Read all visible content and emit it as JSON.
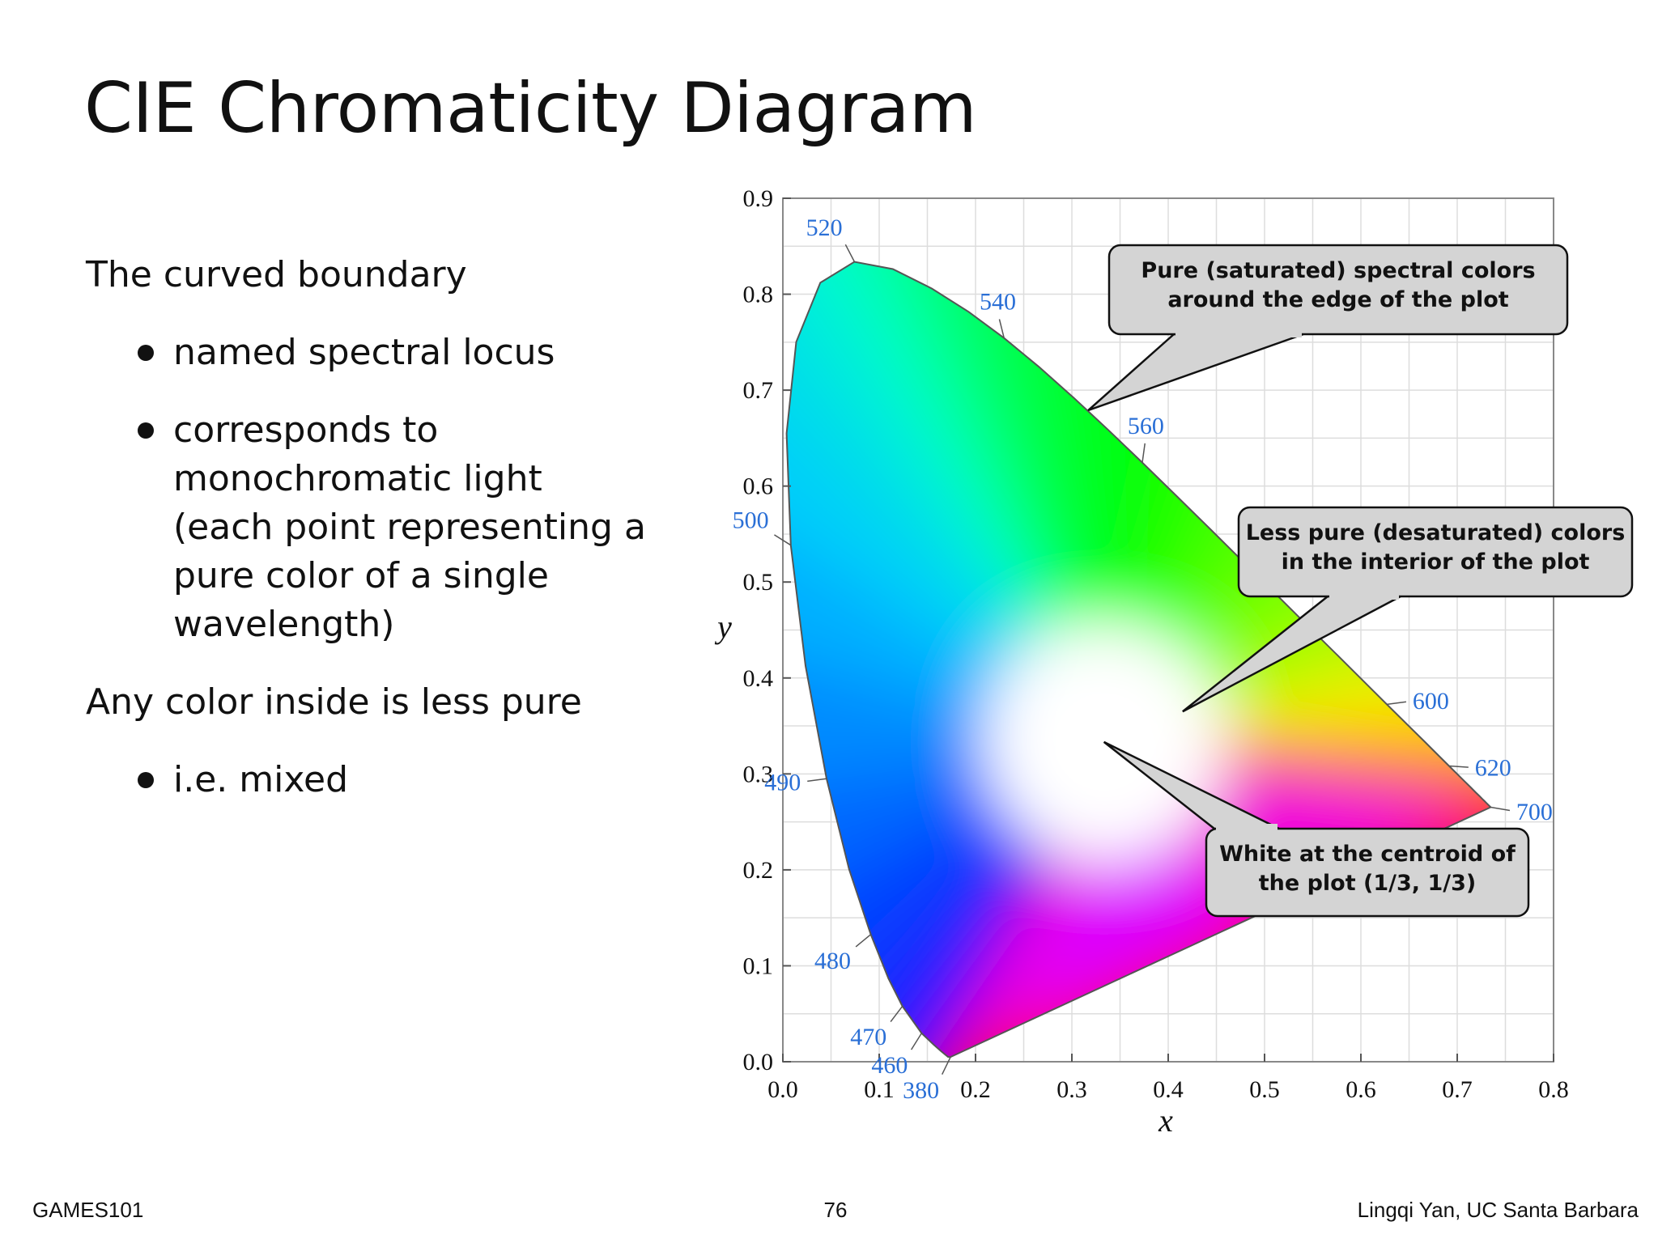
{
  "slide": {
    "title": "CIE Chromaticity Diagram",
    "bullets": [
      {
        "level": 1,
        "text": "The curved boundary"
      },
      {
        "level": 2,
        "text": "named spectral locus"
      },
      {
        "level": 2,
        "lines": [
          "corresponds to",
          "monochromatic light",
          "(each point representing a",
          "pure color of a single",
          "wavelength)"
        ]
      },
      {
        "level": 1,
        "text": "Any color inside is less pure"
      },
      {
        "level": 2,
        "text": "i.e. mixed"
      }
    ],
    "footer": {
      "left": "GAMES101",
      "center": "76",
      "right": "Lingqi Yan, UC Santa Barbara"
    }
  },
  "chart_data": {
    "type": "scatter",
    "xlabel": "x",
    "ylabel": "y",
    "xlim": [
      0.0,
      0.8
    ],
    "ylim": [
      0.0,
      0.9
    ],
    "xticks": [
      "0.0",
      "0.1",
      "0.2",
      "0.3",
      "0.4",
      "0.5",
      "0.6",
      "0.7",
      "0.8"
    ],
    "yticks": [
      "0.0",
      "0.1",
      "0.2",
      "0.3",
      "0.4",
      "0.5",
      "0.6",
      "0.7",
      "0.8",
      "0.9"
    ],
    "grid": true,
    "spectral_locus": [
      {
        "x": 0.1741,
        "y": 0.005
      },
      {
        "x": 0.1738,
        "y": 0.0049
      },
      {
        "x": 0.1714,
        "y": 0.0051
      },
      {
        "x": 0.1644,
        "y": 0.0109
      },
      {
        "x": 0.1566,
        "y": 0.0177
      },
      {
        "x": 0.144,
        "y": 0.0297
      },
      {
        "x": 0.1241,
        "y": 0.0578
      },
      {
        "x": 0.1096,
        "y": 0.0868
      },
      {
        "x": 0.0913,
        "y": 0.1327
      },
      {
        "x": 0.0687,
        "y": 0.2007
      },
      {
        "x": 0.0454,
        "y": 0.295
      },
      {
        "x": 0.0235,
        "y": 0.4127
      },
      {
        "x": 0.0082,
        "y": 0.5384
      },
      {
        "x": 0.0039,
        "y": 0.6548
      },
      {
        "x": 0.0139,
        "y": 0.7502
      },
      {
        "x": 0.0389,
        "y": 0.812
      },
      {
        "x": 0.0743,
        "y": 0.8338
      },
      {
        "x": 0.1142,
        "y": 0.8262
      },
      {
        "x": 0.1547,
        "y": 0.8059
      },
      {
        "x": 0.1929,
        "y": 0.7816
      },
      {
        "x": 0.2296,
        "y": 0.7543
      },
      {
        "x": 0.2658,
        "y": 0.7243
      },
      {
        "x": 0.3016,
        "y": 0.6923
      },
      {
        "x": 0.3373,
        "y": 0.6589
      },
      {
        "x": 0.3731,
        "y": 0.6245
      },
      {
        "x": 0.4087,
        "y": 0.5896
      },
      {
        "x": 0.4441,
        "y": 0.5547
      },
      {
        "x": 0.4788,
        "y": 0.5202
      },
      {
        "x": 0.5125,
        "y": 0.4866
      },
      {
        "x": 0.5448,
        "y": 0.4544
      },
      {
        "x": 0.5752,
        "y": 0.4242
      },
      {
        "x": 0.6029,
        "y": 0.3965
      },
      {
        "x": 0.627,
        "y": 0.3725
      },
      {
        "x": 0.6482,
        "y": 0.3514
      },
      {
        "x": 0.6658,
        "y": 0.334
      },
      {
        "x": 0.6801,
        "y": 0.3197
      },
      {
        "x": 0.6915,
        "y": 0.3083
      },
      {
        "x": 0.7006,
        "y": 0.2993
      },
      {
        "x": 0.7079,
        "y": 0.292
      },
      {
        "x": 0.714,
        "y": 0.2859
      },
      {
        "x": 0.719,
        "y": 0.2809
      },
      {
        "x": 0.723,
        "y": 0.277
      },
      {
        "x": 0.726,
        "y": 0.274
      },
      {
        "x": 0.7283,
        "y": 0.2717
      },
      {
        "x": 0.73,
        "y": 0.27
      },
      {
        "x": 0.7347,
        "y": 0.2653
      }
    ],
    "wavelength_labels": [
      {
        "label": "520",
        "x": 0.0743,
        "y": 0.8338
      },
      {
        "label": "540",
        "x": 0.2296,
        "y": 0.7543
      },
      {
        "label": "560",
        "x": 0.3731,
        "y": 0.6245
      },
      {
        "label": "500",
        "x": 0.0082,
        "y": 0.5384
      },
      {
        "label": "490",
        "x": 0.0454,
        "y": 0.295
      },
      {
        "label": "480",
        "x": 0.0913,
        "y": 0.1327
      },
      {
        "label": "470",
        "x": 0.1241,
        "y": 0.0578
      },
      {
        "label": "460",
        "x": 0.144,
        "y": 0.0297
      },
      {
        "label": "380",
        "x": 0.1741,
        "y": 0.005
      },
      {
        "label": "600",
        "x": 0.627,
        "y": 0.3725
      },
      {
        "label": "620",
        "x": 0.6915,
        "y": 0.3083
      },
      {
        "label": "700",
        "x": 0.7347,
        "y": 0.2653
      }
    ],
    "annotations": [
      {
        "lines": [
          "Pure (saturated) spectral colors",
          "around the edge of the plot"
        ],
        "target": {
          "x": 0.317,
          "y": 0.679
        }
      },
      {
        "lines": [
          "Less pure (desaturated) colors",
          "in the interior of the plot"
        ],
        "target": {
          "x": 0.415,
          "y": 0.365
        }
      },
      {
        "lines": [
          "White at the centroid of",
          "the plot (1/3, 1/3)"
        ],
        "target": {
          "x": 0.3333,
          "y": 0.3333
        }
      }
    ]
  },
  "colors": {
    "wavelength_label": "#2a6fd6",
    "callout_fill": "#d4d4d4",
    "callout_stroke": "#111111",
    "grid": "#dddddd"
  }
}
